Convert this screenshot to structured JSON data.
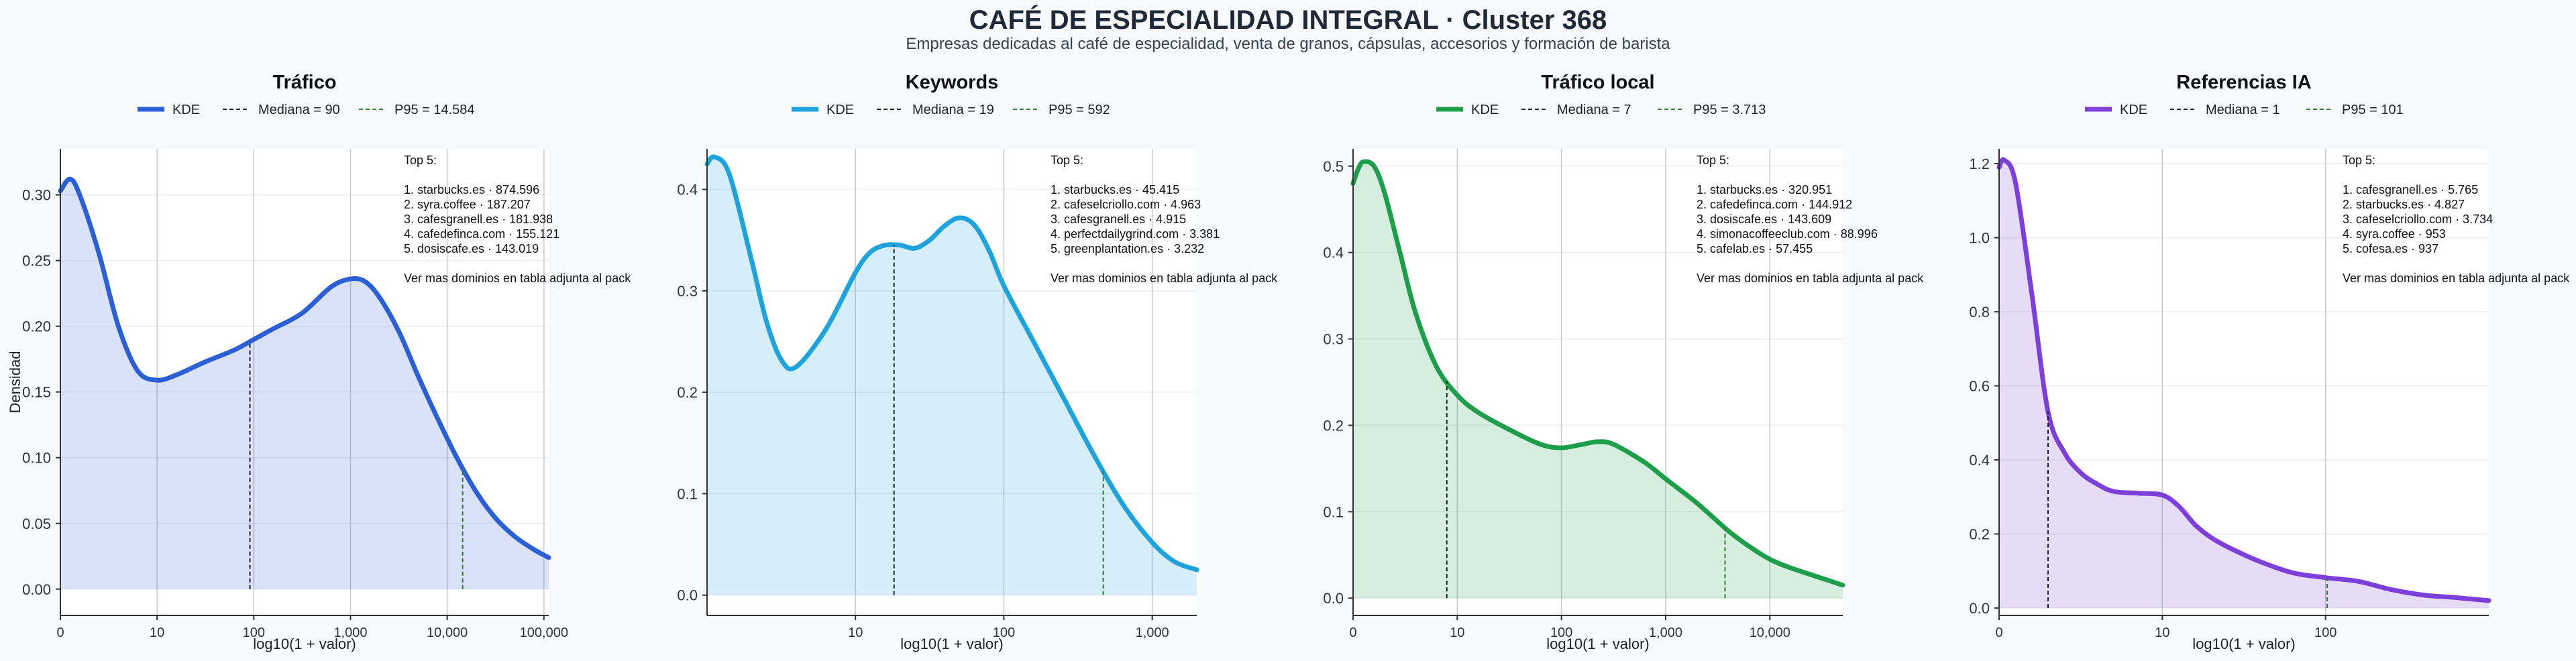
{
  "title": "CAFÉ DE ESPECIALIDAD INTEGRAL · Cluster 368",
  "subtitle": "Empresas dedicadas al café de especialidad, venta de granos, cápsulas, accesorios y formación de barista",
  "colors": {
    "trafico": "#2a5fd6",
    "keywords": "#1ea3dc",
    "trafico_local": "#1c9e4a",
    "referencias_ia": "#7c3fd9",
    "median_line": "#222222",
    "p95_line": "#2e7d32"
  },
  "chart_data": [
    {
      "type": "area",
      "title": "Tráfico",
      "xlabel": "log10(1 + valor)",
      "ylabel": "Densidad",
      "xlim": [
        0,
        5.05
      ],
      "ylim": [
        -0.02,
        0.335
      ],
      "grid": true,
      "legend_position": "top",
      "x_ticks": [
        {
          "value": 0,
          "label": "0"
        },
        {
          "value": 1,
          "label": "10"
        },
        {
          "value": 2,
          "label": "100"
        },
        {
          "value": 3,
          "label": "1,000"
        },
        {
          "value": 4,
          "label": "10,000"
        },
        {
          "value": 5,
          "label": "100,000"
        }
      ],
      "y_ticks": [
        0,
        0.05,
        0.1,
        0.15,
        0.2,
        0.25,
        0.3
      ],
      "y_tick_labels": [
        "0.00",
        "0.05",
        "0.10",
        "0.15",
        "0.20",
        "0.25",
        "0.30"
      ],
      "legend": [
        "KDE",
        "Mediana = 90",
        "P95 = 14.584"
      ],
      "median_log": 1.96,
      "p95_log": 4.16,
      "kde_x": [
        0,
        0.1,
        0.2,
        0.4,
        0.6,
        0.8,
        1.0,
        1.2,
        1.5,
        1.8,
        2.0,
        2.2,
        2.5,
        2.8,
        3.0,
        3.15,
        3.3,
        3.5,
        3.7,
        3.9,
        4.1,
        4.3,
        4.5,
        4.7,
        4.9,
        5.05
      ],
      "kde_y": [
        0.303,
        0.312,
        0.3,
        0.255,
        0.2,
        0.166,
        0.159,
        0.163,
        0.173,
        0.182,
        0.19,
        0.198,
        0.21,
        0.23,
        0.236,
        0.234,
        0.222,
        0.196,
        0.162,
        0.13,
        0.1,
        0.074,
        0.054,
        0.04,
        0.03,
        0.024
      ],
      "top5": [
        "Top 5:",
        "",
        "1. starbucks.es · 874.596",
        "2. syra.coffee · 187.207",
        "3. cafesgranell.es · 181.938",
        "4. cafedefinca.com · 155.121",
        "5. dosiscafe.es · 143.019",
        "",
        "Ver mas dominios en tabla adjunta al pack"
      ]
    },
    {
      "type": "area",
      "title": "Keywords",
      "xlabel": "log10(1 + valor)",
      "ylabel": "",
      "xlim": [
        0,
        3.3
      ],
      "ylim": [
        -0.02,
        0.44
      ],
      "grid": true,
      "legend_position": "top",
      "x_ticks": [
        {
          "value": 1,
          "label": "10"
        },
        {
          "value": 2,
          "label": "100"
        },
        {
          "value": 3,
          "label": "1,000"
        }
      ],
      "y_ticks": [
        0,
        0.1,
        0.2,
        0.3,
        0.4
      ],
      "y_tick_labels": [
        "0.0",
        "0.1",
        "0.2",
        "0.3",
        "0.4"
      ],
      "legend": [
        "KDE",
        "Mediana = 19",
        "P95 = 592"
      ],
      "median_log": 1.26,
      "p95_log": 2.67,
      "kde_x": [
        0,
        0.05,
        0.15,
        0.3,
        0.4,
        0.5,
        0.6,
        0.8,
        1.0,
        1.1,
        1.2,
        1.3,
        1.4,
        1.5,
        1.6,
        1.7,
        1.8,
        1.9,
        2.0,
        2.2,
        2.4,
        2.6,
        2.8,
        3.0,
        3.15,
        3.3
      ],
      "kde_y": [
        0.425,
        0.432,
        0.415,
        0.33,
        0.27,
        0.232,
        0.225,
        0.262,
        0.318,
        0.338,
        0.345,
        0.345,
        0.342,
        0.35,
        0.364,
        0.372,
        0.365,
        0.34,
        0.305,
        0.25,
        0.195,
        0.14,
        0.09,
        0.052,
        0.033,
        0.025
      ],
      "top5": [
        "Top 5:",
        "",
        "1. starbucks.es · 45.415",
        "2. cafeselcriollo.com · 4.963",
        "3. cafesgranell.es · 4.915",
        "4. perfectdailygrind.com · 3.381",
        "5. greenplantation.es · 3.232",
        "",
        "Ver mas dominios en tabla adjunta al pack"
      ]
    },
    {
      "type": "area",
      "title": "Tráfico local",
      "xlabel": "log10(1 + valor)",
      "ylabel": "",
      "xlim": [
        0,
        4.7
      ],
      "ylim": [
        -0.02,
        0.52
      ],
      "grid": true,
      "legend_position": "top",
      "x_ticks": [
        {
          "value": 0,
          "label": "0"
        },
        {
          "value": 1,
          "label": "10"
        },
        {
          "value": 2,
          "label": "100"
        },
        {
          "value": 3,
          "label": "1,000"
        },
        {
          "value": 4,
          "label": "10,000"
        }
      ],
      "y_ticks": [
        0,
        0.1,
        0.2,
        0.3,
        0.4,
        0.5
      ],
      "y_tick_labels": [
        "0.0",
        "0.1",
        "0.2",
        "0.3",
        "0.4",
        "0.5"
      ],
      "legend": [
        "KDE",
        "Mediana = 7",
        "P95 = 3.713"
      ],
      "median_log": 0.9,
      "p95_log": 3.57,
      "kde_x": [
        0,
        0.05,
        0.1,
        0.2,
        0.3,
        0.45,
        0.6,
        0.8,
        1.0,
        1.2,
        1.5,
        1.8,
        2.0,
        2.2,
        2.35,
        2.5,
        2.8,
        3.0,
        3.3,
        3.6,
        3.8,
        4.0,
        4.2,
        4.5,
        4.7
      ],
      "kde_y": [
        0.48,
        0.497,
        0.505,
        0.5,
        0.47,
        0.4,
        0.33,
        0.268,
        0.235,
        0.215,
        0.195,
        0.178,
        0.174,
        0.178,
        0.181,
        0.178,
        0.157,
        0.138,
        0.11,
        0.078,
        0.06,
        0.045,
        0.035,
        0.023,
        0.015
      ],
      "top5": [
        "Top 5:",
        "",
        "1. starbucks.es · 320.951",
        "2. cafedefinca.com · 144.912",
        "3. dosiscafe.es · 143.609",
        "4. simonacoffeeclub.com · 88.996",
        "5. cafelab.es · 57.455",
        "",
        "Ver mas dominios en tabla adjunta al pack"
      ]
    },
    {
      "type": "area",
      "title": "Referencias IA",
      "xlabel": "log10(1 + valor)",
      "ylabel": "",
      "xlim": [
        0,
        3.0
      ],
      "ylim": [
        -0.02,
        1.24
      ],
      "grid": true,
      "legend_position": "top",
      "x_ticks": [
        {
          "value": 0,
          "label": "0"
        },
        {
          "value": 1,
          "label": "10"
        },
        {
          "value": 2,
          "label": "100"
        }
      ],
      "y_ticks": [
        0,
        0.2,
        0.4,
        0.6,
        0.8,
        1.0,
        1.2
      ],
      "y_tick_labels": [
        "0.0",
        "0.2",
        "0.4",
        "0.6",
        "0.8",
        "1.0",
        "1.2"
      ],
      "legend": [
        "KDE",
        "Mediana = 1",
        "P95 = 101"
      ],
      "median_log": 0.3,
      "p95_log": 2.01,
      "kde_x": [
        0,
        0.03,
        0.1,
        0.2,
        0.3,
        0.4,
        0.5,
        0.6,
        0.7,
        0.85,
        1.0,
        1.1,
        1.2,
        1.3,
        1.4,
        1.6,
        1.8,
        2.0,
        2.2,
        2.4,
        2.6,
        2.8,
        3.0
      ],
      "kde_y": [
        1.19,
        1.21,
        1.15,
        0.85,
        0.53,
        0.42,
        0.365,
        0.335,
        0.315,
        0.31,
        0.305,
        0.275,
        0.225,
        0.19,
        0.165,
        0.125,
        0.095,
        0.082,
        0.072,
        0.05,
        0.035,
        0.028,
        0.02
      ],
      "top5": [
        "Top 5:",
        "",
        "1. cafesgranell.es · 5.765",
        "2. starbucks.es · 4.827",
        "3. cafeselcriollo.com · 3.734",
        "4. syra.coffee · 953",
        "5. cofesa.es · 937",
        "",
        "Ver mas dominios en tabla adjunta al pack"
      ]
    }
  ]
}
